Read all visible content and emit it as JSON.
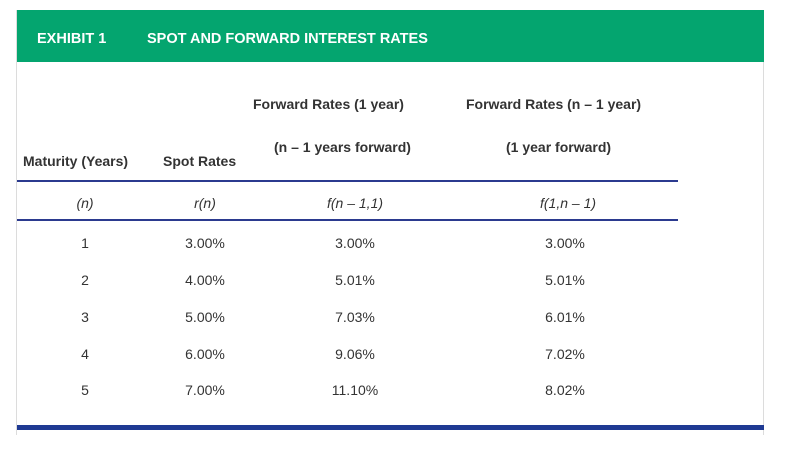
{
  "header": {
    "exhibit_label": "EXHIBIT 1",
    "title": "SPOT AND FORWARD INTEREST RATES"
  },
  "columns": {
    "maturity": {
      "label": "Maturity (Years)",
      "symbol": "(n)"
    },
    "spot": {
      "label": "Spot Rates",
      "symbol": "r(n)"
    },
    "forward_1y": {
      "label_line1": "Forward Rates (1 year)",
      "label_line2": "(n – 1 years forward)",
      "symbol": "f(n – 1,1)"
    },
    "forward_n1": {
      "label_line1": "Forward Rates (n – 1 year)",
      "label_line2": "(1 year forward)",
      "symbol": "f(1,n – 1)"
    }
  },
  "rows": [
    {
      "maturity": "1",
      "spot": "3.00%",
      "forward_1y": "3.00%",
      "forward_n1": "3.00%"
    },
    {
      "maturity": "2",
      "spot": "4.00%",
      "forward_1y": "5.01%",
      "forward_n1": "5.01%"
    },
    {
      "maturity": "3",
      "spot": "5.00%",
      "forward_1y": "7.03%",
      "forward_n1": "6.01%"
    },
    {
      "maturity": "4",
      "spot": "6.00%",
      "forward_1y": "9.06%",
      "forward_n1": "7.02%"
    },
    {
      "maturity": "5",
      "spot": "7.00%",
      "forward_1y": "11.10%",
      "forward_n1": "8.02%"
    }
  ],
  "colors": {
    "header_green": "#04a56f",
    "rule_blue": "#2b3a8f",
    "bottom_bar_blue": "#1f3a93"
  }
}
